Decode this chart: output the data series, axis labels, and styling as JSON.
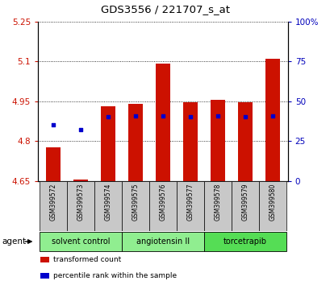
{
  "title": "GDS3556 / 221707_s_at",
  "samples": [
    "GSM399572",
    "GSM399573",
    "GSM399574",
    "GSM399575",
    "GSM399576",
    "GSM399577",
    "GSM399578",
    "GSM399579",
    "GSM399580"
  ],
  "transformed_counts": [
    4.775,
    4.655,
    4.93,
    4.94,
    5.09,
    4.945,
    4.955,
    4.945,
    5.11
  ],
  "percentile_ranks": [
    35,
    32,
    40,
    41,
    41,
    40,
    41,
    40,
    41
  ],
  "base_value": 4.65,
  "ylim_left": [
    4.65,
    5.25
  ],
  "ylim_right": [
    0,
    100
  ],
  "yticks_left": [
    4.65,
    4.8,
    4.95,
    5.1,
    5.25
  ],
  "yticks_right": [
    0,
    25,
    50,
    75,
    100
  ],
  "ytick_labels_left": [
    "4.65",
    "4.8",
    "4.95",
    "5.1",
    "5.25"
  ],
  "ytick_labels_right": [
    "0",
    "25",
    "50",
    "75",
    "100%"
  ],
  "groups": [
    {
      "label": "solvent control",
      "indices": [
        0,
        1,
        2
      ],
      "color": "#90ee90"
    },
    {
      "label": "angiotensin II",
      "indices": [
        3,
        4,
        5
      ],
      "color": "#90ee90"
    },
    {
      "label": "torcetrapib",
      "indices": [
        6,
        7,
        8
      ],
      "color": "#55dd55"
    }
  ],
  "bar_color": "#cc1100",
  "blue_color": "#0000cc",
  "bar_width": 0.55,
  "bg_plot": "#ffffff",
  "bg_sample_row": "#c8c8c8",
  "agent_label": "agent",
  "legend_items": [
    {
      "label": "transformed count",
      "color": "#cc1100"
    },
    {
      "label": "percentile rank within the sample",
      "color": "#0000cc"
    }
  ],
  "left_axis_color": "#cc1100",
  "right_axis_color": "#0000bb"
}
